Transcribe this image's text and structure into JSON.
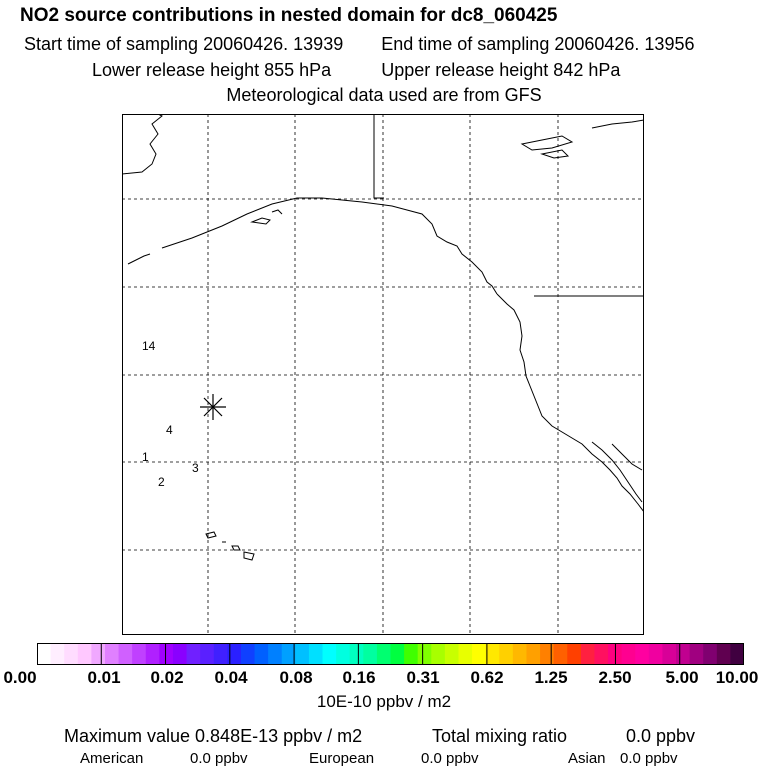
{
  "header": {
    "title": "NO2 source contributions in nested domain for dc8_060425",
    "start": "Start time of sampling 20060426. 13939",
    "end": "End time of sampling 20060426. 13956",
    "lower": "Lower release height  855 hPa",
    "upper": "Upper release height  842 hPa",
    "met": "Meteorological data used are from GFS"
  },
  "map": {
    "labels": [
      "14",
      "4",
      "1",
      "3",
      "2"
    ],
    "marker": "asterisk-icon"
  },
  "colorbar": {
    "ticks": [
      "0.00",
      "0.01",
      "0.02",
      "0.04",
      "0.08",
      "0.16",
      "0.31",
      "0.62",
      "1.25",
      "2.50",
      "5.00",
      "10.00"
    ],
    "colors": [
      "#ffffff",
      "#ffeeff",
      "#ffdcff",
      "#ffc8ff",
      "#f0a8ff",
      "#e080ff",
      "#d060ff",
      "#c040ff",
      "#b020ff",
      "#a000ff",
      "#8a00ff",
      "#7020ff",
      "#5a20ff",
      "#4020ff",
      "#2a20ff",
      "#1040ff",
      "#0060ff",
      "#0080ff",
      "#00a0ff",
      "#00c0ff",
      "#00e0ff",
      "#00ffff",
      "#00ffe0",
      "#00ffc0",
      "#00ffa0",
      "#00ff70",
      "#00ff40",
      "#40ff00",
      "#80ff00",
      "#a8ff00",
      "#c8ff00",
      "#e8ff00",
      "#ffff00",
      "#ffe800",
      "#ffd000",
      "#ffb800",
      "#ffa000",
      "#ff8000",
      "#ff6000",
      "#ff4000",
      "#ff2040",
      "#ff1060",
      "#ff0080",
      "#ff0090",
      "#ff00a0",
      "#f000a0",
      "#d80098",
      "#c00090",
      "#a00080",
      "#800070",
      "#600050",
      "#400040"
    ]
  },
  "footer": {
    "units": "10E-10 ppbv / m2",
    "max_value": "Maximum value  0.848E-13 ppbv / m2",
    "total_label": "Total mixing ratio",
    "total_value": "0.0 ppbv",
    "american_label": "American",
    "american_value": "0.0 ppbv",
    "european_label": "European",
    "european_value": "0.0 ppbv",
    "asian_label": "Asian",
    "asian_value": "0.0 ppbv"
  }
}
